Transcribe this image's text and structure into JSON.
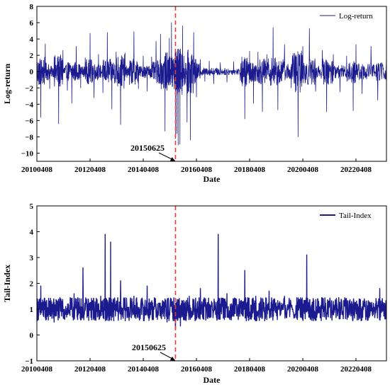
{
  "chart_data": [
    {
      "type": "line",
      "xlabel": "Date",
      "ylabel": "Log-return",
      "x_tick_labels": [
        "20100408",
        "20120408",
        "20140408",
        "20160408",
        "20180408",
        "20200408",
        "20220408"
      ],
      "x_range": [
        "20100408",
        "20230601"
      ],
      "ylim": [
        -11,
        8
      ],
      "y_ticks": [
        -10,
        -8,
        -6,
        -4,
        -2,
        0,
        2,
        4,
        6,
        8
      ],
      "legend_position": "top-right",
      "series": [
        {
          "name": "Log-return",
          "color": "#1b1b8f",
          "points": [
            [
              "20100408",
              0.5
            ],
            [
              "20100601",
              -5.6
            ],
            [
              "20100801",
              3.4
            ],
            [
              "20101001",
              -2.1
            ],
            [
              "20101201",
              1.8
            ],
            [
              "20110201",
              -6.4
            ],
            [
              "20110401",
              2.6
            ],
            [
              "20110601",
              -2.3
            ],
            [
              "20110801",
              -3.9
            ],
            [
              "20111001",
              3.1
            ],
            [
              "20111201",
              -2.0
            ],
            [
              "20120201",
              1.7
            ],
            [
              "20120408",
              4.7
            ],
            [
              "20120601",
              -3.2
            ],
            [
              "20120801",
              2.1
            ],
            [
              "20121001",
              -2.6
            ],
            [
              "20121201",
              4.8
            ],
            [
              "20130201",
              -4.6
            ],
            [
              "20130401",
              2.4
            ],
            [
              "20130601",
              -6.5
            ],
            [
              "20130801",
              2.3
            ],
            [
              "20131001",
              -1.6
            ],
            [
              "20131201",
              4.9
            ],
            [
              "20140201",
              -2.1
            ],
            [
              "20140408",
              1.9
            ],
            [
              "20140601",
              -2.4
            ],
            [
              "20140801",
              1.8
            ],
            [
              "20141001",
              3.7
            ],
            [
              "20141201",
              4.6
            ],
            [
              "20150201",
              -7.3
            ],
            [
              "20150401",
              4.1
            ],
            [
              "20150501",
              6.0
            ],
            [
              "20150625",
              -8.2
            ],
            [
              "20150715",
              -7.6
            ],
            [
              "20150801",
              -9.0
            ],
            [
              "20150825",
              -8.9
            ],
            [
              "20151001",
              5.6
            ],
            [
              "20151201",
              -6.2
            ],
            [
              "20160115",
              -8.4
            ],
            [
              "20160301",
              4.8
            ],
            [
              "20160408",
              -3.1
            ],
            [
              "20160601",
              1.5
            ],
            [
              "20160801",
              -1.2
            ],
            [
              "20161001",
              1.3
            ],
            [
              "20161201",
              -1.5
            ],
            [
              "20170301",
              1.1
            ],
            [
              "20170601",
              -1.3
            ],
            [
              "20170901",
              1.2
            ],
            [
              "20171201",
              -1.1
            ],
            [
              "20180201",
              -5.8
            ],
            [
              "20180408",
              2.5
            ],
            [
              "20180601",
              -3.9
            ],
            [
              "20180801",
              2.4
            ],
            [
              "20181001",
              -4.9
            ],
            [
              "20181201",
              2.1
            ],
            [
              "20190225",
              5.4
            ],
            [
              "20190501",
              -4.7
            ],
            [
              "20190801",
              3.3
            ],
            [
              "20191101",
              -2.0
            ],
            [
              "20200203",
              -8.0
            ],
            [
              "20200408",
              3.1
            ],
            [
              "20200707",
              5.3
            ],
            [
              "20201001",
              -2.4
            ],
            [
              "20210101",
              2.6
            ],
            [
              "20210301",
              -4.9
            ],
            [
              "20210601",
              2.1
            ],
            [
              "20210901",
              -2.5
            ],
            [
              "20211201",
              1.9
            ],
            [
              "20220301",
              -4.8
            ],
            [
              "20220408",
              3.3
            ],
            [
              "20220701",
              -2.7
            ],
            [
              "20221101",
              3.1
            ],
            [
              "20230201",
              -3.5
            ],
            [
              "20230601",
              2.0
            ]
          ]
        }
      ],
      "annotations": [
        {
          "text": "20150625",
          "x": "20150625",
          "target_y": -11
        }
      ],
      "vertical_line": {
        "x": "20150625",
        "color": "#e53935",
        "style": "dashed"
      }
    },
    {
      "type": "line",
      "xlabel": "Date",
      "ylabel": "Tail-Index",
      "x_tick_labels": [
        "20100408",
        "20120408",
        "20140408",
        "20160408",
        "20180408",
        "20200408",
        "20220408"
      ],
      "x_range": [
        "20100408",
        "20230601"
      ],
      "ylim": [
        -1,
        5
      ],
      "y_ticks": [
        -1,
        0,
        1,
        2,
        3,
        4,
        5
      ],
      "legend_position": "top-right",
      "series": [
        {
          "name": "Tail-Index",
          "color": "#1b1b8f",
          "points": [
            [
              "20100408",
              1.0
            ],
            [
              "20100601",
              1.9
            ],
            [
              "20100801",
              0.7
            ],
            [
              "20101001",
              1.3
            ],
            [
              "20101201",
              0.5
            ],
            [
              "20110201",
              1.2
            ],
            [
              "20110601",
              0.8
            ],
            [
              "20110901",
              1.6
            ],
            [
              "20111101",
              1.1
            ],
            [
              "20120101",
              2.6
            ],
            [
              "20120408",
              1.2
            ],
            [
              "20120601",
              0.9
            ],
            [
              "20120901",
              1.5
            ],
            [
              "20121101",
              3.9
            ],
            [
              "20121215",
              1.0
            ],
            [
              "20130115",
              3.6
            ],
            [
              "20130301",
              1.3
            ],
            [
              "20130601",
              2.1
            ],
            [
              "20130901",
              0.8
            ],
            [
              "20131201",
              1.5
            ],
            [
              "20140301",
              0.9
            ],
            [
              "20140601",
              1.9
            ],
            [
              "20140901",
              1.1
            ],
            [
              "20141201",
              0.8
            ],
            [
              "20150301",
              0.5
            ],
            [
              "20150625",
              0.25
            ],
            [
              "20150901",
              0.35
            ],
            [
              "20151101",
              0.6
            ],
            [
              "20160101",
              1.5
            ],
            [
              "20160408",
              1.0
            ],
            [
              "20160601",
              1.8
            ],
            [
              "20160901",
              0.8
            ],
            [
              "20161101",
              1.3
            ],
            [
              "20170201",
              3.9
            ],
            [
              "20170301",
              1.2
            ],
            [
              "20170601",
              1.6
            ],
            [
              "20170901",
              0.8
            ],
            [
              "20171201",
              1.2
            ],
            [
              "20180201",
              2.5
            ],
            [
              "20180408",
              0.9
            ],
            [
              "20180701",
              1.5
            ],
            [
              "20181001",
              0.7
            ],
            [
              "20190101",
              1.7
            ],
            [
              "20190401",
              1.0
            ],
            [
              "20190801",
              1.5
            ],
            [
              "20200101",
              0.8
            ],
            [
              "20200408",
              1.2
            ],
            [
              "20200601",
              3.1
            ],
            [
              "20200801",
              1.0
            ],
            [
              "20201101",
              1.4
            ],
            [
              "20210201",
              0.7
            ],
            [
              "20210601",
              1.3
            ],
            [
              "20211001",
              0.8
            ],
            [
              "20220101",
              1.2
            ],
            [
              "20220408",
              0.9
            ],
            [
              "20220801",
              1.4
            ],
            [
              "20221201",
              0.8
            ],
            [
              "20230301",
              1.8
            ],
            [
              "20230601",
              0.6
            ]
          ]
        }
      ],
      "annotations": [
        {
          "text": "20150625",
          "x": "20150625",
          "target_y": -1
        }
      ],
      "vertical_line": {
        "x": "20150625",
        "color": "#e53935",
        "style": "dashed"
      }
    }
  ]
}
